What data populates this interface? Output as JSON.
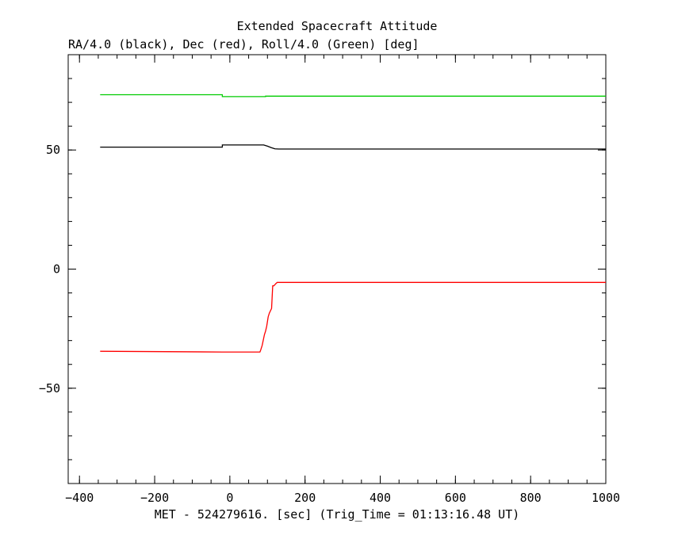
{
  "chart_data": {
    "type": "line",
    "title": "Extended Spacecraft Attitude",
    "subtitle": "RA/4.0 (black), Dec (red), Roll/4.0 (Green) [deg]",
    "xlabel": "MET - 524279616. [sec] (Trig_Time = 01:13:16.48 UT)",
    "ylabel": "",
    "xlim": [
      -430,
      1000
    ],
    "ylim": [
      -90,
      90
    ],
    "x_ticks": [
      -400,
      -200,
      0,
      200,
      400,
      600,
      800,
      1000
    ],
    "x_tick_labels": [
      "−400",
      "−200",
      "0",
      "200",
      "400",
      "600",
      "800",
      "1000"
    ],
    "y_ticks": [
      -50,
      0,
      50
    ],
    "y_tick_labels": [
      "−50",
      "0",
      "50"
    ],
    "x_minor_step": 50,
    "y_minor_step": 10,
    "grid": false,
    "series": [
      {
        "color": "#000000",
        "x": [
          -345,
          -20,
          -20,
          90,
          100,
          110,
          120,
          130,
          140,
          150,
          1000
        ],
        "y": [
          51.2,
          51.2,
          52.1,
          52.1,
          51.6,
          51.0,
          50.5,
          50.4,
          50.4,
          50.4,
          50.4
        ]
      },
      {
        "color": "#00cc00",
        "x": [
          -345,
          -20,
          -20,
          95,
          95,
          1000
        ],
        "y": [
          73.2,
          73.2,
          72.4,
          72.4,
          72.6,
          72.6
        ]
      },
      {
        "color": "#ff0000",
        "x": [
          -345,
          -20,
          80,
          82,
          84,
          86,
          88,
          90,
          92,
          95,
          98,
          100,
          102,
          105,
          108,
          111,
          114,
          117,
          120,
          123,
          126,
          130,
          135,
          1000
        ],
        "y": [
          -34.5,
          -34.8,
          -34.8,
          -34.0,
          -33.0,
          -32.0,
          -30.5,
          -29.0,
          -27.5,
          -26.0,
          -24.0,
          -22.0,
          -20.0,
          -18.5,
          -17.5,
          -16.5,
          -7.0,
          -7.0,
          -6.5,
          -6.0,
          -5.6,
          -5.6,
          -5.6,
          -5.6
        ]
      }
    ]
  }
}
